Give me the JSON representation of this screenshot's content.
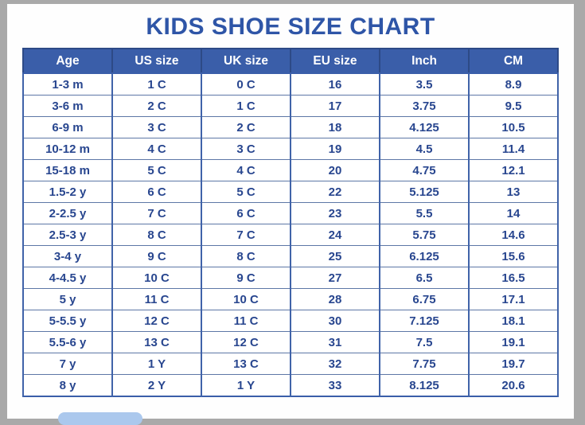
{
  "page": {
    "title": "KIDS SHOE SIZE CHART"
  },
  "colors": {
    "title_text": "#2e55a7",
    "header_bg": "#3a5ea9",
    "header_text": "#ffffff",
    "cell_text": "#28468f",
    "border_vertical": "#4063a9",
    "border_horizontal": "#5d77a6",
    "frame_gray": "#a9a9a9",
    "page_bg": "#fefefe",
    "bottom_pill": "#abc8ed"
  },
  "chart_data": {
    "type": "table",
    "title": "KIDS SHOE SIZE CHART",
    "columns": [
      "Age",
      "US size",
      "UK size",
      "EU size",
      "Inch",
      "CM"
    ],
    "rows": [
      [
        "1-3 m",
        "1 C",
        "0 C",
        "16",
        "3.5",
        "8.9"
      ],
      [
        "3-6 m",
        "2 C",
        "1 C",
        "17",
        "3.75",
        "9.5"
      ],
      [
        "6-9 m",
        "3 C",
        "2 C",
        "18",
        "4.125",
        "10.5"
      ],
      [
        "10-12 m",
        "4 C",
        "3 C",
        "19",
        "4.5",
        "11.4"
      ],
      [
        "15-18 m",
        "5 C",
        "4 C",
        "20",
        "4.75",
        "12.1"
      ],
      [
        "1.5-2 y",
        "6 C",
        "5 C",
        "22",
        "5.125",
        "13"
      ],
      [
        "2-2.5 y",
        "7 C",
        "6 C",
        "23",
        "5.5",
        "14"
      ],
      [
        "2.5-3 y",
        "8 C",
        "7 C",
        "24",
        "5.75",
        "14.6"
      ],
      [
        "3-4 y",
        "9 C",
        "8 C",
        "25",
        "6.125",
        "15.6"
      ],
      [
        "4-4.5 y",
        "10 C",
        "9 C",
        "27",
        "6.5",
        "16.5"
      ],
      [
        "5 y",
        "11 C",
        "10 C",
        "28",
        "6.75",
        "17.1"
      ],
      [
        "5-5.5 y",
        "12 C",
        "11 C",
        "30",
        "7.125",
        "18.1"
      ],
      [
        "5.5-6 y",
        "13 C",
        "12 C",
        "31",
        "7.5",
        "19.1"
      ],
      [
        "7 y",
        "1 Y",
        "13 C",
        "32",
        "7.75",
        "19.7"
      ],
      [
        "8 y",
        "2 Y",
        "1 Y",
        "33",
        "8.125",
        "20.6"
      ]
    ]
  }
}
